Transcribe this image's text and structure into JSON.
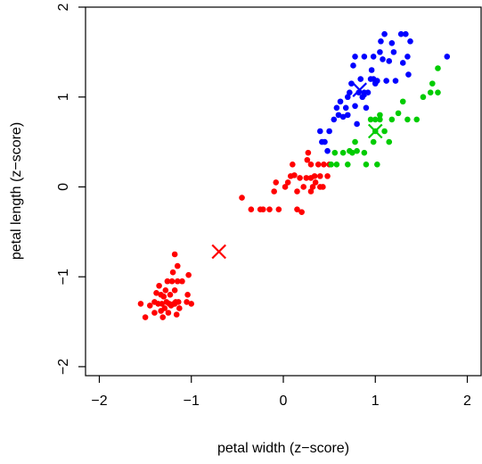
{
  "chart_data": {
    "type": "scatter",
    "title": "",
    "xlabel": "petal width (z−score)",
    "ylabel": "petal length (z−score)",
    "xlim": [
      -2.15,
      2.15
    ],
    "ylim": [
      -2.1,
      2.0
    ],
    "xticks": [
      -2,
      -1,
      0,
      1,
      2
    ],
    "yticks": [
      -2,
      -1,
      0,
      1,
      2
    ],
    "xtick_labels": [
      "−2",
      "−1",
      "0",
      "1",
      "2"
    ],
    "ytick_labels": [
      "−2",
      "−1",
      "0",
      "1",
      "2"
    ],
    "grid": false,
    "legend": "none",
    "series": [
      {
        "color": "#ff0000",
        "points": [
          [
            -1.55,
            -1.3
          ],
          [
            -1.5,
            -1.45
          ],
          [
            -1.45,
            -1.32
          ],
          [
            -1.4,
            -1.4
          ],
          [
            -1.4,
            -1.28
          ],
          [
            -1.38,
            -1.18
          ],
          [
            -1.36,
            -1.3
          ],
          [
            -1.35,
            -1.1
          ],
          [
            -1.33,
            -1.2
          ],
          [
            -1.33,
            -1.38
          ],
          [
            -1.32,
            -1.3
          ],
          [
            -1.31,
            -1.45
          ],
          [
            -1.3,
            -1.22
          ],
          [
            -1.29,
            -1.35
          ],
          [
            -1.28,
            -1.15
          ],
          [
            -1.27,
            -1.28
          ],
          [
            -1.26,
            -1.05
          ],
          [
            -1.25,
            -1.4
          ],
          [
            -1.24,
            -1.3
          ],
          [
            -1.23,
            -1.2
          ],
          [
            -1.22,
            -1.32
          ],
          [
            -1.21,
            -1.05
          ],
          [
            -1.2,
            -0.95
          ],
          [
            -1.19,
            -1.3
          ],
          [
            -1.18,
            -1.15
          ],
          [
            -1.17,
            -1.28
          ],
          [
            -1.16,
            -1.42
          ],
          [
            -1.15,
            -1.05
          ],
          [
            -1.14,
            -1.28
          ],
          [
            -1.13,
            -1.35
          ],
          [
            -1.18,
            -0.75
          ],
          [
            -1.1,
            -1.05
          ],
          [
            -1.05,
            -1.28
          ],
          [
            -1.04,
            -1.2
          ],
          [
            -1.18,
            -1.3
          ],
          [
            -1.15,
            -0.88
          ],
          [
            -1.03,
            -0.98
          ],
          [
            -1.0,
            -1.3
          ],
          [
            -0.45,
            -0.12
          ],
          [
            -0.25,
            -0.25
          ],
          [
            -0.22,
            -0.25
          ],
          [
            -0.15,
            -0.25
          ],
          [
            -0.05,
            -0.25
          ],
          [
            -0.08,
            0.05
          ],
          [
            0.02,
            0.0
          ],
          [
            0.05,
            0.05
          ],
          [
            0.08,
            0.12
          ],
          [
            0.1,
            0.25
          ],
          [
            0.12,
            0.13
          ],
          [
            0.15,
            -0.05
          ],
          [
            0.15,
            -0.25
          ],
          [
            0.18,
            0.1
          ],
          [
            0.2,
            -0.28
          ],
          [
            0.22,
            0.0
          ],
          [
            0.25,
            0.1
          ],
          [
            0.26,
            0.3
          ],
          [
            0.27,
            0.38
          ],
          [
            0.3,
            0.1
          ],
          [
            0.3,
            0.25
          ],
          [
            0.32,
            0.0
          ],
          [
            0.34,
            0.12
          ],
          [
            0.38,
            0.25
          ],
          [
            0.4,
            0.12
          ],
          [
            0.44,
            0.25
          ],
          [
            0.48,
            0.12
          ],
          [
            0.5,
            0.25
          ],
          [
            0.3,
            -0.05
          ],
          [
            0.43,
            0.0
          ],
          [
            -0.1,
            -0.05
          ],
          [
            -0.35,
            -0.25
          ],
          [
            0.35,
            0.05
          ],
          [
            0.4,
            0.0
          ]
        ]
      },
      {
        "color": "#00cc00",
        "points": [
          [
            0.52,
            0.25
          ],
          [
            0.56,
            0.38
          ],
          [
            0.58,
            0.25
          ],
          [
            0.65,
            0.38
          ],
          [
            0.7,
            0.25
          ],
          [
            0.72,
            0.4
          ],
          [
            0.75,
            0.38
          ],
          [
            0.78,
            0.5
          ],
          [
            0.8,
            0.4
          ],
          [
            0.88,
            0.38
          ],
          [
            0.9,
            0.25
          ],
          [
            0.95,
            0.75
          ],
          [
            0.98,
            0.5
          ],
          [
            1.0,
            0.75
          ],
          [
            1.02,
            0.25
          ],
          [
            1.05,
            0.75
          ],
          [
            1.1,
            0.62
          ],
          [
            1.15,
            0.5
          ],
          [
            1.18,
            0.75
          ],
          [
            1.25,
            0.82
          ],
          [
            1.3,
            0.95
          ],
          [
            1.35,
            0.75
          ],
          [
            1.45,
            0.75
          ],
          [
            1.52,
            1.0
          ],
          [
            1.6,
            1.05
          ],
          [
            1.62,
            1.15
          ],
          [
            1.68,
            1.05
          ],
          [
            1.68,
            1.32
          ],
          [
            1.0,
            0.62
          ],
          [
            1.05,
            0.8
          ]
        ]
      },
      {
        "color": "#0000ff",
        "points": [
          [
            0.4,
            0.62
          ],
          [
            0.42,
            0.5
          ],
          [
            0.45,
            0.5
          ],
          [
            0.48,
            0.4
          ],
          [
            0.5,
            0.62
          ],
          [
            0.55,
            0.75
          ],
          [
            0.58,
            0.88
          ],
          [
            0.6,
            0.8
          ],
          [
            0.62,
            0.95
          ],
          [
            0.65,
            0.78
          ],
          [
            0.68,
            0.88
          ],
          [
            0.7,
            1.0
          ],
          [
            0.72,
            1.05
          ],
          [
            0.74,
            1.15
          ],
          [
            0.76,
            1.35
          ],
          [
            0.78,
            1.45
          ],
          [
            0.78,
            0.9
          ],
          [
            0.8,
            0.7
          ],
          [
            0.82,
            1.05
          ],
          [
            0.84,
            1.2
          ],
          [
            0.86,
            1.0
          ],
          [
            0.88,
            1.45
          ],
          [
            0.9,
            0.88
          ],
          [
            0.92,
            1.05
          ],
          [
            0.95,
            1.2
          ],
          [
            0.96,
            1.3
          ],
          [
            0.98,
            1.45
          ],
          [
            1.0,
            1.15
          ],
          [
            1.02,
            1.18
          ],
          [
            1.05,
            1.5
          ],
          [
            1.06,
            1.62
          ],
          [
            1.08,
            1.42
          ],
          [
            1.1,
            1.7
          ],
          [
            1.12,
            1.18
          ],
          [
            1.15,
            1.4
          ],
          [
            1.18,
            1.6
          ],
          [
            1.2,
            1.5
          ],
          [
            1.22,
            1.18
          ],
          [
            1.28,
            1.7
          ],
          [
            1.3,
            1.38
          ],
          [
            1.33,
            1.7
          ],
          [
            1.35,
            1.45
          ],
          [
            1.36,
            1.25
          ],
          [
            1.38,
            1.62
          ],
          [
            1.78,
            1.45
          ],
          [
            0.98,
            1.2
          ],
          [
            0.88,
            1.05
          ],
          [
            0.7,
            0.8
          ]
        ]
      }
    ],
    "centroids": [
      {
        "x": -0.7,
        "y": -0.72,
        "color": "#ff0000"
      },
      {
        "x": 1.0,
        "y": 0.62,
        "color": "#00cc00"
      },
      {
        "x": 0.83,
        "y": 1.08,
        "color": "#0000ff"
      }
    ]
  }
}
